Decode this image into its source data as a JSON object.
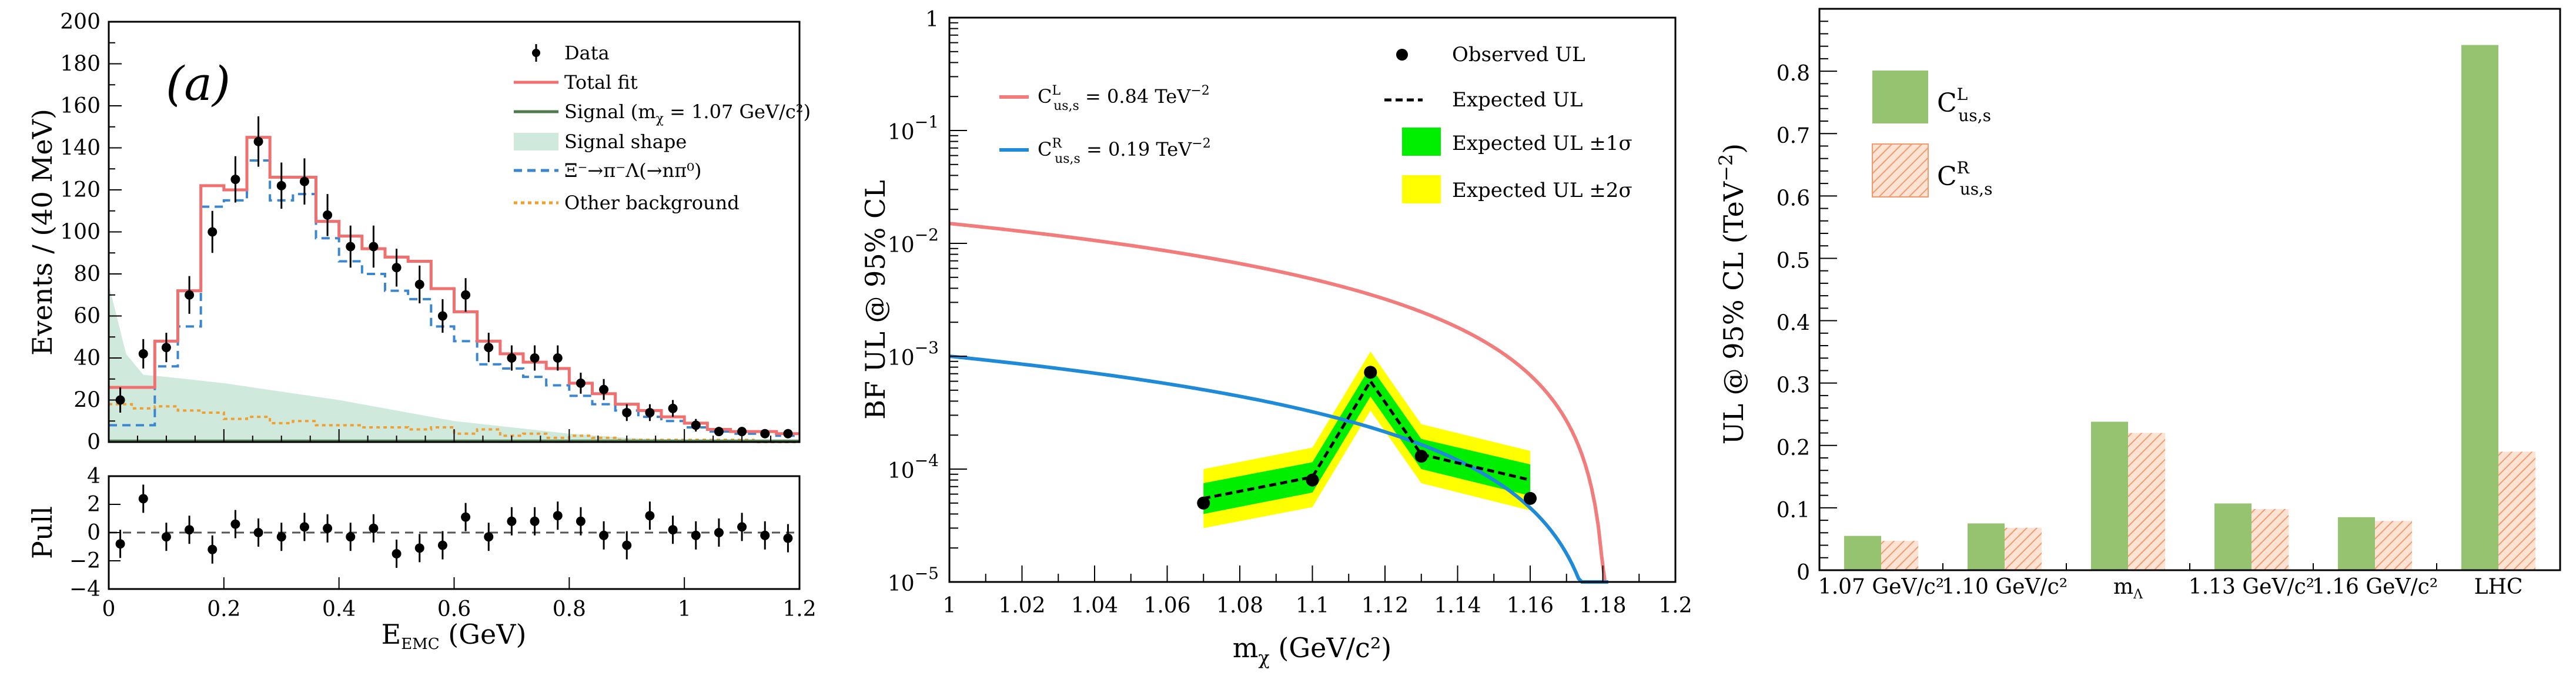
{
  "colors": {
    "total_fit": "#f07070",
    "signal": "#4e7a4e",
    "signal_shape": "#cfe9dc",
    "xi_bkg": "#3a86d0",
    "other_bkg": "#f0a030",
    "ul_L": "#f27b7b",
    "ul_R": "#1e8ad8",
    "band1": "#00ee00",
    "band2": "#ffff00",
    "bar_L": "#95c36f",
    "bar_R": "#f6b08a"
  },
  "chart_data": [
    {
      "type": "line",
      "panel": "a",
      "panel_label": "(a)",
      "xlabel": "E",
      "xlabel_sub": "EMC",
      "xlabel_unit": " (GeV)",
      "ylabel": "Events / (40 MeV)",
      "xlim": [
        0,
        1.2
      ],
      "ylim": [
        0,
        200
      ],
      "xticks": [
        "0",
        "0.2",
        "0.4",
        "0.6",
        "0.8",
        "1",
        "1.2"
      ],
      "yticks": [
        "0",
        "20",
        "40",
        "60",
        "80",
        "100",
        "120",
        "140",
        "160",
        "180",
        "200"
      ],
      "legend": {
        "data": "Data",
        "total_fit": "Total fit",
        "signal": "Signal (m",
        "signal_sub": "χ",
        "signal_rest": " = 1.07 GeV/c²)",
        "signal_shape": "Signal shape",
        "xi": "Ξ⁻→π⁻Λ(→nπ⁰)",
        "other": "Other background"
      },
      "bin_edges": [
        0,
        0.04,
        0.08,
        0.12,
        0.16,
        0.2,
        0.24,
        0.28,
        0.32,
        0.36,
        0.4,
        0.44,
        0.48,
        0.52,
        0.56,
        0.6,
        0.64,
        0.68,
        0.72,
        0.76,
        0.8,
        0.84,
        0.88,
        0.92,
        0.96,
        1.0,
        1.04,
        1.08,
        1.12,
        1.16,
        1.2
      ],
      "data_points": [
        {
          "x": 0.02,
          "y": 20,
          "err": 6
        },
        {
          "x": 0.06,
          "y": 42,
          "err": 7
        },
        {
          "x": 0.1,
          "y": 45,
          "err": 7
        },
        {
          "x": 0.14,
          "y": 70,
          "err": 9
        },
        {
          "x": 0.18,
          "y": 100,
          "err": 10
        },
        {
          "x": 0.22,
          "y": 125,
          "err": 11
        },
        {
          "x": 0.26,
          "y": 143,
          "err": 12
        },
        {
          "x": 0.3,
          "y": 122,
          "err": 11
        },
        {
          "x": 0.34,
          "y": 124,
          "err": 11
        },
        {
          "x": 0.38,
          "y": 108,
          "err": 10
        },
        {
          "x": 0.42,
          "y": 93,
          "err": 10
        },
        {
          "x": 0.46,
          "y": 93,
          "err": 10
        },
        {
          "x": 0.5,
          "y": 83,
          "err": 9
        },
        {
          "x": 0.54,
          "y": 75,
          "err": 9
        },
        {
          "x": 0.58,
          "y": 60,
          "err": 8
        },
        {
          "x": 0.62,
          "y": 70,
          "err": 8
        },
        {
          "x": 0.66,
          "y": 45,
          "err": 7
        },
        {
          "x": 0.7,
          "y": 40,
          "err": 6
        },
        {
          "x": 0.74,
          "y": 40,
          "err": 6
        },
        {
          "x": 0.78,
          "y": 40,
          "err": 6
        },
        {
          "x": 0.82,
          "y": 28,
          "err": 5
        },
        {
          "x": 0.86,
          "y": 25,
          "err": 5
        },
        {
          "x": 0.9,
          "y": 14,
          "err": 4
        },
        {
          "x": 0.94,
          "y": 14,
          "err": 4
        },
        {
          "x": 0.98,
          "y": 16,
          "err": 4
        },
        {
          "x": 1.02,
          "y": 8,
          "err": 3
        },
        {
          "x": 1.06,
          "y": 5,
          "err": 2
        },
        {
          "x": 1.1,
          "y": 5,
          "err": 2
        },
        {
          "x": 1.14,
          "y": 4,
          "err": 2
        },
        {
          "x": 1.18,
          "y": 4,
          "err": 2
        }
      ],
      "total_fit": [
        26,
        26,
        48,
        72,
        122,
        120,
        145,
        126,
        126,
        105,
        98,
        92,
        88,
        86,
        73,
        62,
        48,
        42,
        38,
        35,
        28,
        23,
        18,
        15,
        12,
        9,
        6,
        5,
        5,
        4
      ],
      "xi_background": [
        8,
        8,
        36,
        55,
        112,
        115,
        134,
        115,
        118,
        97,
        86,
        80,
        72,
        68,
        55,
        48,
        37,
        35,
        31,
        27,
        22,
        18,
        15,
        12,
        10,
        7,
        5,
        4,
        4,
        3
      ],
      "other_background": [
        18,
        16,
        17,
        15,
        14,
        11,
        12,
        9,
        10,
        8,
        8,
        7,
        7,
        6,
        7,
        4,
        6,
        3,
        4,
        2,
        3,
        2,
        1,
        1,
        1,
        1,
        1,
        1,
        0,
        0
      ],
      "signal_shape": [
        {
          "x": 0,
          "y": 75
        },
        {
          "x": 0.03,
          "y": 42
        },
        {
          "x": 0.06,
          "y": 32
        },
        {
          "x": 0.1,
          "y": 31
        },
        {
          "x": 0.2,
          "y": 28
        },
        {
          "x": 0.3,
          "y": 24
        },
        {
          "x": 0.4,
          "y": 20
        },
        {
          "x": 0.5,
          "y": 15
        },
        {
          "x": 0.6,
          "y": 10
        },
        {
          "x": 0.7,
          "y": 7
        },
        {
          "x": 0.8,
          "y": 4
        },
        {
          "x": 0.9,
          "y": 2
        },
        {
          "x": 1.0,
          "y": 1
        },
        {
          "x": 1.1,
          "y": 0.5
        },
        {
          "x": 1.2,
          "y": 0
        }
      ]
    },
    {
      "type": "scatter",
      "panel": "pull",
      "ylabel": "Pull",
      "xlim": [
        0,
        1.2
      ],
      "ylim": [
        -4,
        4
      ],
      "yticks": [
        "−4",
        "−2",
        "0",
        "2",
        "4"
      ],
      "pulls": [
        -0.8,
        2.4,
        -0.3,
        0.2,
        -1.2,
        0.6,
        0.0,
        -0.3,
        0.4,
        0.3,
        -0.3,
        0.3,
        -1.5,
        -1.1,
        -0.9,
        1.1,
        -0.3,
        0.8,
        0.8,
        1.2,
        0.8,
        -0.2,
        -0.9,
        1.2,
        0.2,
        -0.2,
        0.0,
        0.4,
        -0.2,
        -0.4
      ]
    },
    {
      "type": "line",
      "panel": "b",
      "xlabel": "m",
      "xlabel_sub": "χ",
      "xlabel_unit": " (GeV/c²)",
      "ylabel": "BF UL @ 95% CL",
      "xlim": [
        1.0,
        1.2
      ],
      "ylim_log10": [
        -5,
        0
      ],
      "xticks": [
        "1",
        "1.02",
        "1.04",
        "1.06",
        "1.08",
        "1.1",
        "1.12",
        "1.14",
        "1.16",
        "1.18",
        "1.2"
      ],
      "yticks": [
        {
          "base": "10",
          "exp": "−5"
        },
        {
          "base": "10",
          "exp": "−4"
        },
        {
          "base": "10",
          "exp": "−3"
        },
        {
          "base": "10",
          "exp": "−2"
        },
        {
          "base": "10",
          "exp": "−1"
        },
        {
          "base": "1",
          "exp": ""
        }
      ],
      "legend": {
        "observed": "Observed UL",
        "expected": "Expected UL",
        "band1": "Expected UL  ±1σ",
        "band2": "Expected UL  ±2σ",
        "cL_main": "C",
        "cL_sup": "L",
        "cL_sub": "us,s",
        "cL_value": " = 0.84 TeV",
        "cL_exp": "−2",
        "cR_main": "C",
        "cR_sup": "R",
        "cR_sub": "us,s",
        "cR_value": " = 0.19 TeV",
        "cR_exp": "−2"
      },
      "observed": [
        {
          "x": 1.07,
          "y": 5e-05
        },
        {
          "x": 1.1,
          "y": 8e-05
        },
        {
          "x": 1.116,
          "y": 0.00072
        },
        {
          "x": 1.13,
          "y": 0.00013
        },
        {
          "x": 1.16,
          "y": 5.5e-05
        }
      ],
      "expected": [
        {
          "x": 1.07,
          "y": 5.5e-05
        },
        {
          "x": 1.1,
          "y": 8.5e-05
        },
        {
          "x": 1.116,
          "y": 0.0006
        },
        {
          "x": 1.13,
          "y": 0.000135
        },
        {
          "x": 1.16,
          "y": 8e-05
        }
      ],
      "band1": [
        {
          "x": 1.07,
          "lo": 4e-05,
          "hi": 7.5e-05
        },
        {
          "x": 1.1,
          "lo": 6.2e-05,
          "hi": 0.000115
        },
        {
          "x": 1.116,
          "lo": 0.00044,
          "hi": 0.00081
        },
        {
          "x": 1.13,
          "lo": 0.0001,
          "hi": 0.000185
        },
        {
          "x": 1.16,
          "lo": 5.8e-05,
          "hi": 0.00011
        }
      ],
      "band2": [
        {
          "x": 1.07,
          "lo": 3e-05,
          "hi": 0.0001
        },
        {
          "x": 1.1,
          "lo": 4.6e-05,
          "hi": 0.000155
        },
        {
          "x": 1.116,
          "lo": 0.00033,
          "hi": 0.0011
        },
        {
          "x": 1.13,
          "lo": 7.5e-05,
          "hi": 0.00025
        },
        {
          "x": 1.16,
          "lo": 4.3e-05,
          "hi": 0.000145
        }
      ],
      "theory_L": {
        "name": "C^L_us,s = 0.84 TeV^-2",
        "y0": 0.015,
        "m_max": 1.1815
      },
      "theory_R": {
        "name": "C^R_us,s = 0.19 TeV^-2",
        "y0": 0.001,
        "m_max": 1.1815
      }
    },
    {
      "type": "bar",
      "panel": "c",
      "ylabel": "UL @ 95% CL (TeV",
      "ylabel_exp": "−2",
      "ylabel_end": ")",
      "ylim": [
        0,
        0.9
      ],
      "yticks": [
        "0",
        "0.1",
        "0.2",
        "0.3",
        "0.4",
        "0.5",
        "0.6",
        "0.7",
        "0.8"
      ],
      "categories": [
        {
          "main": "1.07 GeV/c²",
          "sub": ""
        },
        {
          "main": "1.10 GeV/c²",
          "sub": ""
        },
        {
          "main": "m",
          "sub": "Λ"
        },
        {
          "main": "1.13 GeV/c²",
          "sub": ""
        },
        {
          "main": "1.16 GeV/c²",
          "sub": ""
        },
        {
          "main": "LHC",
          "sub": ""
        }
      ],
      "series": [
        {
          "name": "C^L_us,s",
          "main": "C",
          "sup": "L",
          "sub": "us,s",
          "values": [
            0.055,
            0.075,
            0.238,
            0.107,
            0.085,
            0.842
          ]
        },
        {
          "name": "C^R_us,s",
          "main": "C",
          "sup": "R",
          "sub": "us,s",
          "values": [
            0.047,
            0.068,
            0.22,
            0.098,
            0.079,
            0.19
          ]
        }
      ]
    }
  ]
}
